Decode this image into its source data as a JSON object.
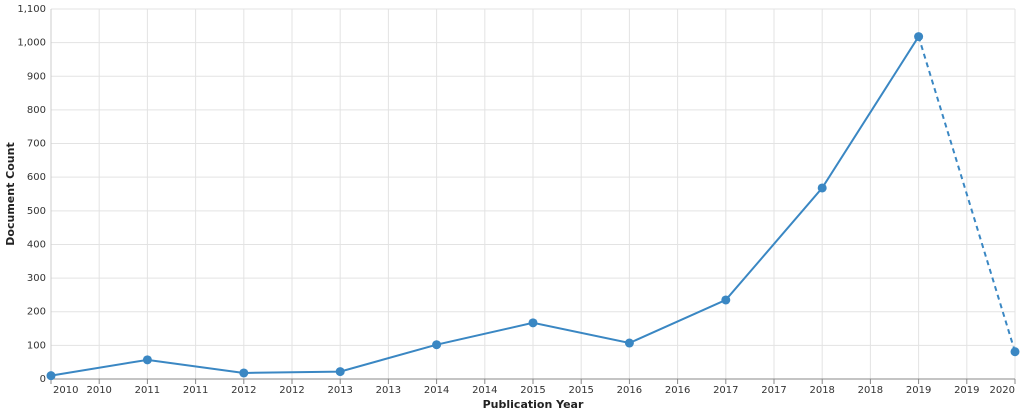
{
  "chart_data": {
    "type": "line",
    "x_label": "Publication Year",
    "y_label": "Document Count",
    "x": [
      2010,
      2011,
      2012,
      2013,
      2014,
      2015,
      2016,
      2017,
      2018,
      2019,
      2020
    ],
    "series": [
      {
        "color": "#3a87c3",
        "values": [
          10,
          57,
          18,
          22,
          102,
          167,
          107,
          235,
          568,
          1018,
          81
        ]
      }
    ],
    "dashed_after": 2019,
    "xlim": [
      2010,
      2020
    ],
    "xticks": [
      2010,
      {
        "value": 2010.5,
        "label": "2010"
      },
      2011,
      {
        "value": 2011.5,
        "label": "2011"
      },
      2012,
      {
        "value": 2012.5,
        "label": "2012"
      },
      2013,
      {
        "value": 2013.5,
        "label": "2013"
      },
      2014,
      {
        "value": 2014.5,
        "label": "2014"
      },
      2015,
      {
        "value": 2015.5,
        "label": "2015"
      },
      2016,
      {
        "value": 2016.5,
        "label": "2016"
      },
      2017,
      {
        "value": 2017.5,
        "label": "2017"
      },
      2018,
      {
        "value": 2018.5,
        "label": "2018"
      },
      2019,
      {
        "value": 2019.5,
        "label": "2019"
      },
      2020
    ],
    "ylim": [
      0,
      1100
    ],
    "yticks": [
      0,
      100,
      200,
      300,
      400,
      500,
      600,
      700,
      800,
      900,
      {
        "value": 1000,
        "label": "1,000"
      },
      {
        "value": 1100,
        "label": "1,100"
      }
    ],
    "grid": true
  }
}
